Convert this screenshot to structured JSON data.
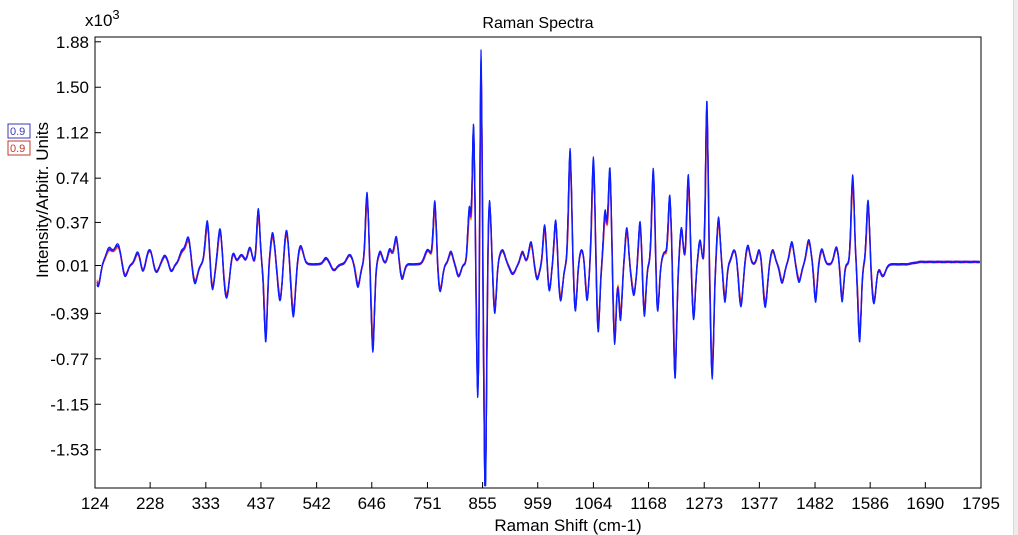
{
  "chart_data": {
    "type": "line",
    "title": "Raman Spectra",
    "xlabel": "Raman Shift (cm-1)",
    "ylabel": "Intensity/Arbitr. Units",
    "y_multiplier_label": "x10",
    "y_multiplier_exponent": "3",
    "xlim": [
      124,
      1795
    ],
    "ylim": [
      -1.85,
      1.92
    ],
    "x_ticks": [
      "124",
      "228",
      "333",
      "437",
      "542",
      "646",
      "751",
      "855",
      "959",
      "1064",
      "1168",
      "1273",
      "1377",
      "1482",
      "1586",
      "1690",
      "1795"
    ],
    "y_ticks": [
      "1.88",
      "1.50",
      "1.12",
      "0.74",
      "0.37",
      "0.01",
      "-0.39",
      "-0.77",
      "-1.15",
      "-1.53"
    ],
    "grid": false,
    "legend": {
      "placement": "left",
      "entries": [
        {
          "text": "0.9",
          "color": "#3a3ab4"
        },
        {
          "text": "0.9",
          "color": "#c0392b"
        }
      ]
    },
    "series_colors": [
      "#ff9a00",
      "#e8331f",
      "#c71585",
      "#7b00ff",
      "#3a0fe0",
      "#0a1fff"
    ],
    "baseline": 0.02,
    "end_level": 0.04,
    "peaks": [
      {
        "x": 130,
        "amp": -0.18,
        "w": 4
      },
      {
        "x": 150,
        "amp": 0.12,
        "w": 6
      },
      {
        "x": 167,
        "amp": 0.16,
        "w": 7
      },
      {
        "x": 180,
        "amp": -0.12,
        "w": 5
      },
      {
        "x": 205,
        "amp": 0.1,
        "w": 5
      },
      {
        "x": 214,
        "amp": -0.08,
        "w": 4
      },
      {
        "x": 228,
        "amp": 0.13,
        "w": 6
      },
      {
        "x": 238,
        "amp": -0.09,
        "w": 5
      },
      {
        "x": 256,
        "amp": 0.07,
        "w": 5
      },
      {
        "x": 268,
        "amp": -0.06,
        "w": 4
      },
      {
        "x": 288,
        "amp": 0.1,
        "w": 5
      },
      {
        "x": 300,
        "amp": 0.22,
        "w": 5
      },
      {
        "x": 312,
        "amp": -0.16,
        "w": 5
      },
      {
        "x": 336,
        "amp": 0.36,
        "w": 4
      },
      {
        "x": 345,
        "amp": -0.22,
        "w": 4
      },
      {
        "x": 360,
        "amp": 0.3,
        "w": 4
      },
      {
        "x": 372,
        "amp": -0.28,
        "w": 5
      },
      {
        "x": 384,
        "amp": 0.1,
        "w": 4
      },
      {
        "x": 400,
        "amp": 0.08,
        "w": 5
      },
      {
        "x": 416,
        "amp": 0.14,
        "w": 4
      },
      {
        "x": 432,
        "amp": 0.45,
        "w": 3
      },
      {
        "x": 446,
        "amp": -0.62,
        "w": 3
      },
      {
        "x": 459,
        "amp": 0.25,
        "w": 4
      },
      {
        "x": 473,
        "amp": -0.3,
        "w": 4
      },
      {
        "x": 485,
        "amp": 0.28,
        "w": 4
      },
      {
        "x": 498,
        "amp": -0.42,
        "w": 4
      },
      {
        "x": 512,
        "amp": 0.15,
        "w": 5
      },
      {
        "x": 560,
        "amp": 0.05,
        "w": 5
      },
      {
        "x": 575,
        "amp": -0.05,
        "w": 5
      },
      {
        "x": 604,
        "amp": 0.08,
        "w": 5
      },
      {
        "x": 620,
        "amp": -0.18,
        "w": 4
      },
      {
        "x": 637,
        "amp": 0.58,
        "w": 3
      },
      {
        "x": 648,
        "amp": -0.7,
        "w": 3
      },
      {
        "x": 662,
        "amp": 0.1,
        "w": 4
      },
      {
        "x": 680,
        "amp": 0.12,
        "w": 4
      },
      {
        "x": 692,
        "amp": 0.22,
        "w": 4
      },
      {
        "x": 703,
        "amp": -0.12,
        "w": 4
      },
      {
        "x": 752,
        "amp": 0.12,
        "w": 6
      },
      {
        "x": 765,
        "amp": 0.5,
        "w": 3
      },
      {
        "x": 775,
        "amp": -0.22,
        "w": 4
      },
      {
        "x": 795,
        "amp": 0.1,
        "w": 4
      },
      {
        "x": 810,
        "amp": -0.1,
        "w": 4
      },
      {
        "x": 830,
        "amp": 0.45,
        "w": 3
      },
      {
        "x": 838,
        "amp": 1.12,
        "w": 2.5
      },
      {
        "x": 846,
        "amp": -1.1,
        "w": 2.5
      },
      {
        "x": 852,
        "amp": 1.78,
        "w": 2
      },
      {
        "x": 860,
        "amp": -1.92,
        "w": 2.5
      },
      {
        "x": 868,
        "amp": 0.52,
        "w": 3
      },
      {
        "x": 878,
        "amp": -0.4,
        "w": 3
      },
      {
        "x": 892,
        "amp": 0.12,
        "w": 5
      },
      {
        "x": 912,
        "amp": -0.08,
        "w": 5
      },
      {
        "x": 930,
        "amp": 0.1,
        "w": 4
      },
      {
        "x": 946,
        "amp": 0.18,
        "w": 4
      },
      {
        "x": 958,
        "amp": -0.12,
        "w": 4
      },
      {
        "x": 972,
        "amp": 0.32,
        "w": 3
      },
      {
        "x": 981,
        "amp": -0.22,
        "w": 3
      },
      {
        "x": 993,
        "amp": 0.38,
        "w": 3
      },
      {
        "x": 1002,
        "amp": -0.3,
        "w": 4
      },
      {
        "x": 1020,
        "amp": 0.92,
        "w": 3
      },
      {
        "x": 1030,
        "amp": -0.38,
        "w": 3
      },
      {
        "x": 1042,
        "amp": 0.12,
        "w": 4
      },
      {
        "x": 1052,
        "amp": -0.3,
        "w": 3
      },
      {
        "x": 1064,
        "amp": 0.86,
        "w": 3
      },
      {
        "x": 1073,
        "amp": -0.55,
        "w": 3
      },
      {
        "x": 1086,
        "amp": 0.42,
        "w": 3
      },
      {
        "x": 1095,
        "amp": 0.78,
        "w": 3
      },
      {
        "x": 1104,
        "amp": -0.65,
        "w": 3
      },
      {
        "x": 1115,
        "amp": -0.45,
        "w": 3
      },
      {
        "x": 1127,
        "amp": 0.3,
        "w": 3
      },
      {
        "x": 1140,
        "amp": -0.25,
        "w": 4
      },
      {
        "x": 1152,
        "amp": 0.35,
        "w": 3
      },
      {
        "x": 1160,
        "amp": -0.42,
        "w": 3
      },
      {
        "x": 1177,
        "amp": 0.78,
        "w": 3
      },
      {
        "x": 1185,
        "amp": -0.4,
        "w": 3
      },
      {
        "x": 1198,
        "amp": 0.1,
        "w": 4
      },
      {
        "x": 1208,
        "amp": 0.55,
        "w": 3
      },
      {
        "x": 1218,
        "amp": -0.92,
        "w": 3
      },
      {
        "x": 1230,
        "amp": 0.3,
        "w": 3
      },
      {
        "x": 1243,
        "amp": 0.72,
        "w": 3
      },
      {
        "x": 1253,
        "amp": -0.45,
        "w": 3
      },
      {
        "x": 1265,
        "amp": 0.2,
        "w": 3
      },
      {
        "x": 1278,
        "amp": 1.32,
        "w": 2.5
      },
      {
        "x": 1288,
        "amp": -0.92,
        "w": 3
      },
      {
        "x": 1300,
        "amp": 0.38,
        "w": 3
      },
      {
        "x": 1312,
        "amp": -0.3,
        "w": 3
      },
      {
        "x": 1330,
        "amp": 0.12,
        "w": 5
      },
      {
        "x": 1342,
        "amp": -0.35,
        "w": 4
      },
      {
        "x": 1355,
        "amp": 0.15,
        "w": 4
      },
      {
        "x": 1377,
        "amp": 0.12,
        "w": 4
      },
      {
        "x": 1388,
        "amp": -0.35,
        "w": 4
      },
      {
        "x": 1402,
        "amp": 0.12,
        "w": 4
      },
      {
        "x": 1420,
        "amp": -0.15,
        "w": 4
      },
      {
        "x": 1438,
        "amp": 0.18,
        "w": 4
      },
      {
        "x": 1452,
        "amp": -0.14,
        "w": 4
      },
      {
        "x": 1470,
        "amp": 0.2,
        "w": 4
      },
      {
        "x": 1483,
        "amp": -0.3,
        "w": 3
      },
      {
        "x": 1495,
        "amp": 0.12,
        "w": 4
      },
      {
        "x": 1522,
        "amp": 0.14,
        "w": 4
      },
      {
        "x": 1533,
        "amp": -0.3,
        "w": 3
      },
      {
        "x": 1553,
        "amp": 0.72,
        "w": 3
      },
      {
        "x": 1566,
        "amp": -0.62,
        "w": 3
      },
      {
        "x": 1582,
        "amp": 0.52,
        "w": 3
      },
      {
        "x": 1593,
        "amp": -0.32,
        "w": 4
      },
      {
        "x": 1610,
        "amp": -0.1,
        "w": 5
      }
    ]
  }
}
